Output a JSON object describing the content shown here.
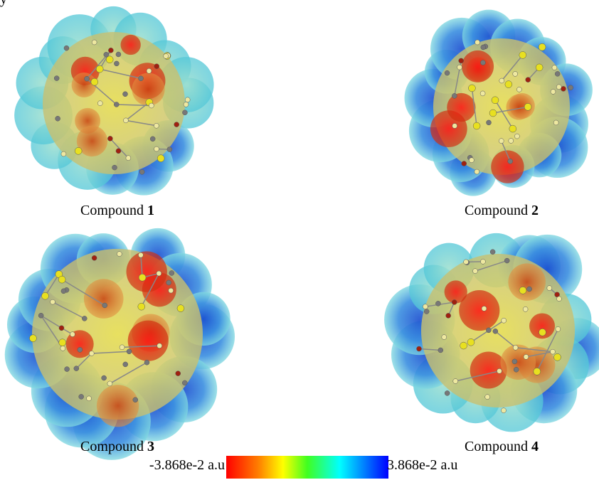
{
  "fragment": "y",
  "panels": [
    {
      "label": "Compound",
      "number": "1"
    },
    {
      "label": "Compound",
      "number": "2"
    },
    {
      "label": "Compound",
      "number": "3"
    },
    {
      "label": "Compound",
      "number": "4"
    }
  ],
  "colorbar": {
    "min_label": "-3.868e-2 a.u",
    "max_label": "3.868e-2 a.u"
  }
}
